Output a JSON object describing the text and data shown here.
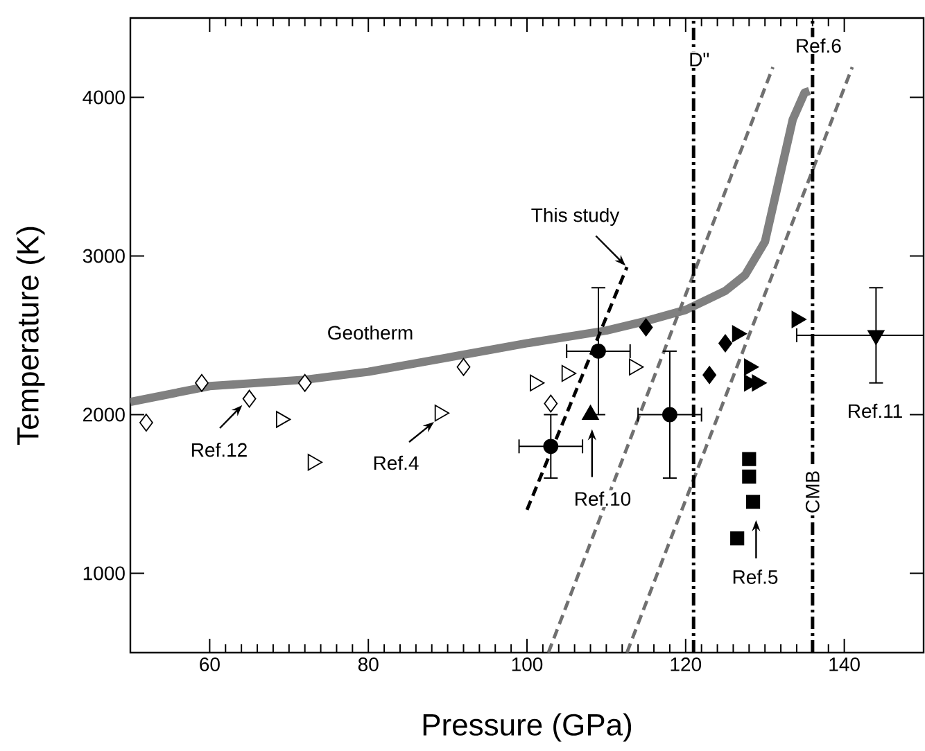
{
  "chart_data": {
    "type": "scatter",
    "xlabel": "Pressure (GPa)",
    "ylabel": "Temperature (K)",
    "xlim": [
      50,
      150
    ],
    "ylim": [
      500,
      4500
    ],
    "xticks": [
      60,
      80,
      100,
      120,
      140
    ],
    "yticks": [
      1000,
      2000,
      3000,
      4000
    ],
    "series": [
      {
        "type": "line",
        "color": "#808080",
        "line_style": "solid",
        "x": [
          50,
          60,
          72,
          80,
          90,
          100,
          110,
          115,
          120,
          125,
          127.5,
          130,
          132,
          133.5,
          135,
          135.6
        ],
        "values": [
          2080,
          2180,
          2220,
          2270,
          2360,
          2450,
          2530,
          2590,
          2660,
          2780,
          2880,
          3090,
          3530,
          3860,
          4030,
          4040
        ]
      },
      {
        "type": "line",
        "color": "#000000",
        "line_style": "dashed",
        "x": [
          100,
          112.6
        ],
        "values": [
          1400,
          2930
        ]
      },
      {
        "type": "line",
        "color": "#707070",
        "line_style": "dashed",
        "x": [
          102.7,
          131
        ],
        "values": [
          500,
          4190
        ]
      },
      {
        "type": "line",
        "color": "#707070",
        "line_style": "dashed",
        "x": [
          112.6,
          141
        ],
        "values": [
          500,
          4190
        ]
      },
      {
        "marker": "diamond",
        "color": "#ffffff",
        "x": [
          52,
          59,
          65,
          72,
          92,
          103
        ],
        "values": [
          1950,
          2200,
          2100,
          2200,
          2300,
          2070
        ]
      },
      {
        "marker": "triangle-right",
        "color": "#ffffff",
        "x": [
          69,
          73,
          89,
          101,
          105,
          113.5
        ],
        "values": [
          1970,
          1700,
          2010,
          2200,
          2260,
          2300
        ]
      },
      {
        "marker": "circle",
        "color": "#000000",
        "x": [
          103,
          109,
          118
        ],
        "values": [
          1800,
          2400,
          2000
        ],
        "errors": [
          200,
          400,
          400
        ],
        "xerrors": [
          4,
          4,
          4
        ]
      },
      {
        "marker": "triangle",
        "color": "#000000",
        "x": [
          108
        ],
        "values": [
          2000
        ]
      },
      {
        "marker": "diamond",
        "color": "#000000",
        "x": [
          115,
          123,
          125
        ],
        "values": [
          2550,
          2250,
          2450
        ]
      },
      {
        "marker": "triangle-right",
        "color": "#000000",
        "x": [
          126.5,
          128,
          128,
          129,
          134
        ],
        "values": [
          2510,
          2300,
          2200,
          2200,
          2600
        ]
      },
      {
        "marker": "square",
        "color": "#000000",
        "x": [
          128,
          128,
          128.5,
          126.5
        ],
        "values": [
          1720,
          1610,
          1450,
          1220
        ]
      },
      {
        "marker": "triangle-down",
        "color": "#000000",
        "x": [
          144
        ],
        "values": [
          2500
        ],
        "errors": [
          300
        ],
        "xerrors": [
          [
            134,
            150
          ]
        ]
      }
    ],
    "ref_lines": [
      {
        "axis": "x",
        "value": 121,
        "label": "D\"",
        "color": "#000000",
        "line_style": "dashdot"
      },
      {
        "axis": "x",
        "value": 136,
        "label": "CMB",
        "color": "#000000",
        "line_style": "dashdot"
      }
    ],
    "annotations": [
      "Geotherm",
      "Ref.12",
      "Ref.4",
      {
        "text": "This study",
        "x": 112.6,
        "y": 2930
      },
      "Ref.10",
      "Ref.5",
      "Ref.11",
      "Ref.6"
    ]
  }
}
